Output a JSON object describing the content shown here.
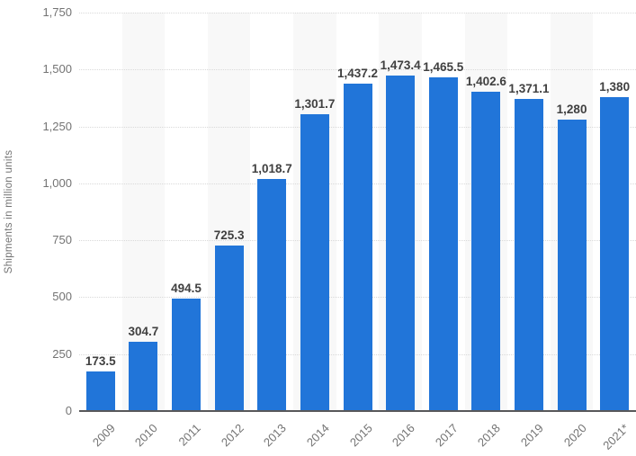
{
  "chart_data": {
    "type": "bar",
    "title": "",
    "categories": [
      "2009",
      "2010",
      "2011",
      "2012",
      "2013",
      "2014",
      "2015",
      "2016",
      "2017",
      "2018",
      "2019",
      "2020",
      "2021*"
    ],
    "values": [
      173.5,
      304.7,
      494.5,
      725.3,
      1018.7,
      1301.7,
      1437.2,
      1473.4,
      1465.5,
      1402.6,
      1371.1,
      1280,
      1380
    ],
    "value_labels": [
      "173.5",
      "304.7",
      "494.5",
      "725.3",
      "1,018.7",
      "1,301.7",
      "1,437.2",
      "1,473.4",
      "1,465.5",
      "1,402.6",
      "1,371.1",
      "1,280",
      "1,380"
    ],
    "xlabel": "",
    "ylabel": "Shipments in million units",
    "ylim": [
      0,
      1750
    ],
    "ytick_step": 250,
    "yticks": [
      "0",
      "250",
      "500",
      "750",
      "1,000",
      "1,250",
      "1,500",
      "1,750"
    ],
    "grid": "horizontal-dotted",
    "legend": "none",
    "colors": {
      "bar": "#2175d9",
      "stripe": "#f8f8f8",
      "axis_line": "#58585a",
      "gridline": "#d9d9d9",
      "tick_text": "#737373",
      "value_text": "#404040"
    }
  }
}
